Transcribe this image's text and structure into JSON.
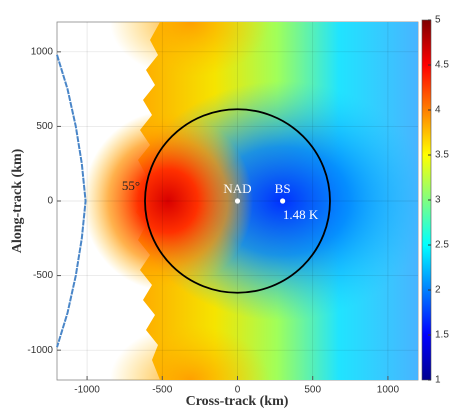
{
  "chart_data": {
    "type": "heatmap",
    "xlabel": "Cross-track (km)",
    "ylabel": "Along-track (km)",
    "xlim": [
      -1200,
      1200
    ],
    "ylim": [
      -1200,
      1200
    ],
    "xticks": [
      -1000,
      -500,
      0,
      500,
      1000
    ],
    "yticks": [
      -1000,
      -500,
      0,
      500,
      1000
    ],
    "grid": true,
    "colorbar": {
      "lim": [
        1,
        5
      ],
      "ticks": [
        1,
        1.5,
        2,
        2.5,
        3,
        3.5,
        4,
        4.5,
        5
      ],
      "colors": [
        "#00008f",
        "#0000ff",
        "#0080ff",
        "#00ffff",
        "#80ff80",
        "#ffff00",
        "#ff8000",
        "#ff0000",
        "#800000"
      ]
    },
    "circle": {
      "center": [
        0,
        0
      ],
      "radius": 615,
      "color": "#000000"
    },
    "series": [
      {
        "color": "#4a86c8",
        "x": [
          -1200,
          -1130,
          -1075,
          -1035,
          -1010,
          -1035,
          -1075,
          -1130,
          -1200
        ],
        "y": [
          980,
          750,
          500,
          250,
          0,
          -250,
          -500,
          -750,
          -980
        ]
      }
    ],
    "points": [
      {
        "name": "NAD",
        "x": 0,
        "y": 0
      },
      {
        "name": "BS",
        "x": 300,
        "y": 0,
        "note": "1.48 K"
      }
    ],
    "annotations": [
      "55°"
    ]
  }
}
